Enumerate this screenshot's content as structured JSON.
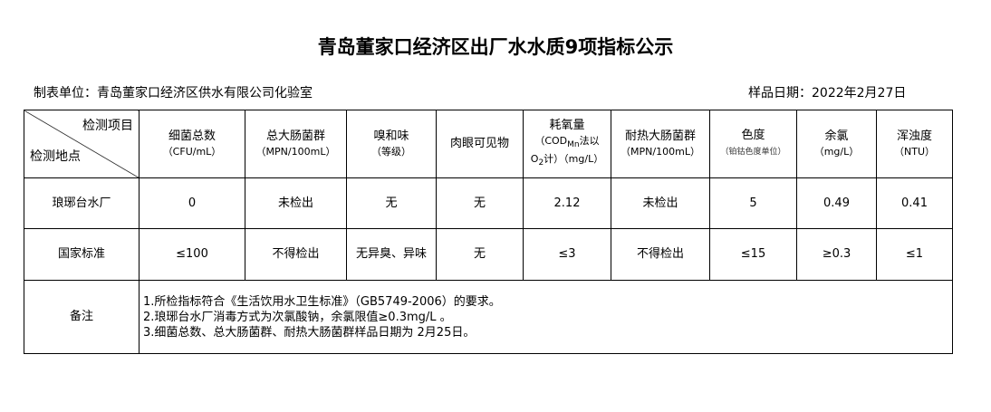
{
  "title": "青岛董家口经济区出厂水水质9项指标公示",
  "maker": "制表单位：青岛董家口经济区供水有限公司化验室",
  "sample_date": "样品日期：2022年2月27日",
  "corner": {
    "top": "检测项目",
    "bottom": "检测地点"
  },
  "headers": [
    {
      "name": "细菌总数",
      "unit": "（CFU/mL）"
    },
    {
      "name": "总大肠菌群",
      "unit": "（MPN/100mL）"
    },
    {
      "name": "嗅和味",
      "unit": "（等级）"
    },
    {
      "name": "肉眼可见物",
      "unit": ""
    },
    {
      "name": "耗氧量",
      "unit": "（COD",
      "unit_sub": "Mn",
      "unit2": "法以",
      "unit3": "O",
      "unit3_sub": "2",
      "unit4": "计）（mg/L）"
    },
    {
      "name": "耐热大肠菌群",
      "unit": "（MPN/100mL）"
    },
    {
      "name": "色度",
      "unit": "（铂钴色度单位）"
    },
    {
      "name": "余氯",
      "unit": "（mg/L）"
    },
    {
      "name": "浑浊度",
      "unit": "（NTU）"
    }
  ],
  "rows": [
    {
      "label": "琅琊台水厂",
      "values": [
        "0",
        "未检出",
        "无",
        "无",
        "2.12",
        "未检出",
        "5",
        "0.49",
        "0.41"
      ]
    },
    {
      "label": "国家标准",
      "values": [
        "≤100",
        "不得检出",
        "无异臭、异味",
        "无",
        "≤3",
        "不得检出",
        "≤15",
        "≥0.3",
        "≤1"
      ]
    }
  ],
  "notes": {
    "label": "备注",
    "lines": [
      "1.所检指标符合《生活饮用水卫生标准》（GB5749-2006）的要求。",
      "2.琅琊台水厂消毒方式为次氯酸钠，余氯限值≥0.3mg/L 。",
      "3.细菌总数、总大肠菌群、耐热大肠菌群样品日期为 2月25日。"
    ]
  }
}
